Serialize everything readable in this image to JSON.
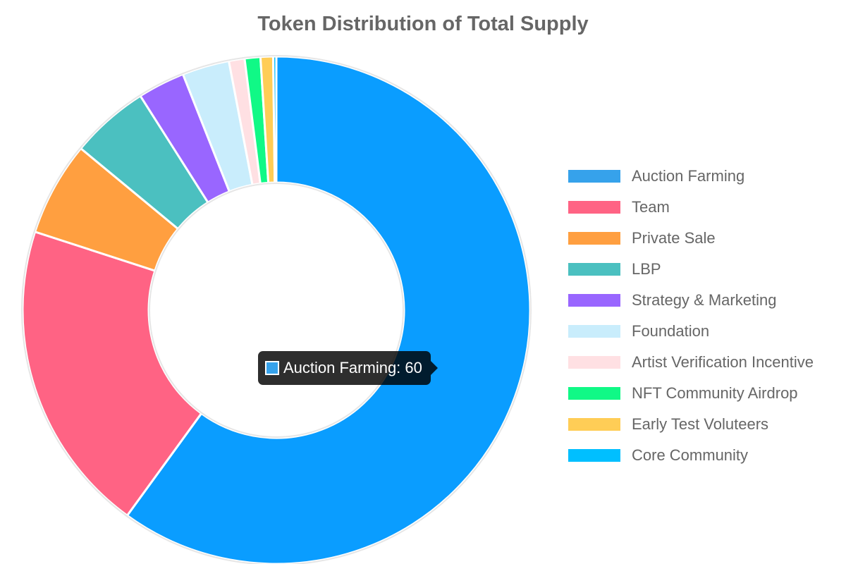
{
  "chart_data": {
    "type": "pie",
    "variant": "doughnut",
    "title": "Token Distribution of Total Supply",
    "categories": [
      "Auction Farming",
      "Team",
      "Private Sale",
      "LBP",
      "Strategy & Marketing",
      "Foundation",
      "Artist Verification Incentive",
      "NFT Community Airdrop",
      "Early Test Voluteers",
      "Core Community"
    ],
    "values": [
      60,
      20,
      6,
      5,
      3,
      3,
      1,
      1,
      0.8,
      0.2
    ],
    "colors": [
      "#0a9dff",
      "#ff6384",
      "#ff9f40",
      "#4bc0c0",
      "#9966ff",
      "#c9edfc",
      "#ffe0e3",
      "#10f986",
      "#ffcd56",
      "#00bfff"
    ],
    "legend_colors": [
      "#36a2eb",
      "#ff6384",
      "#ff9f40",
      "#4bc0c0",
      "#9966ff",
      "#c9edfc",
      "#ffe0e3",
      "#10f986",
      "#ffcd56",
      "#00bfff"
    ],
    "legend_position": "right",
    "tooltip": {
      "label": "Auction Farming: 60",
      "color": "#36a2eb"
    }
  }
}
